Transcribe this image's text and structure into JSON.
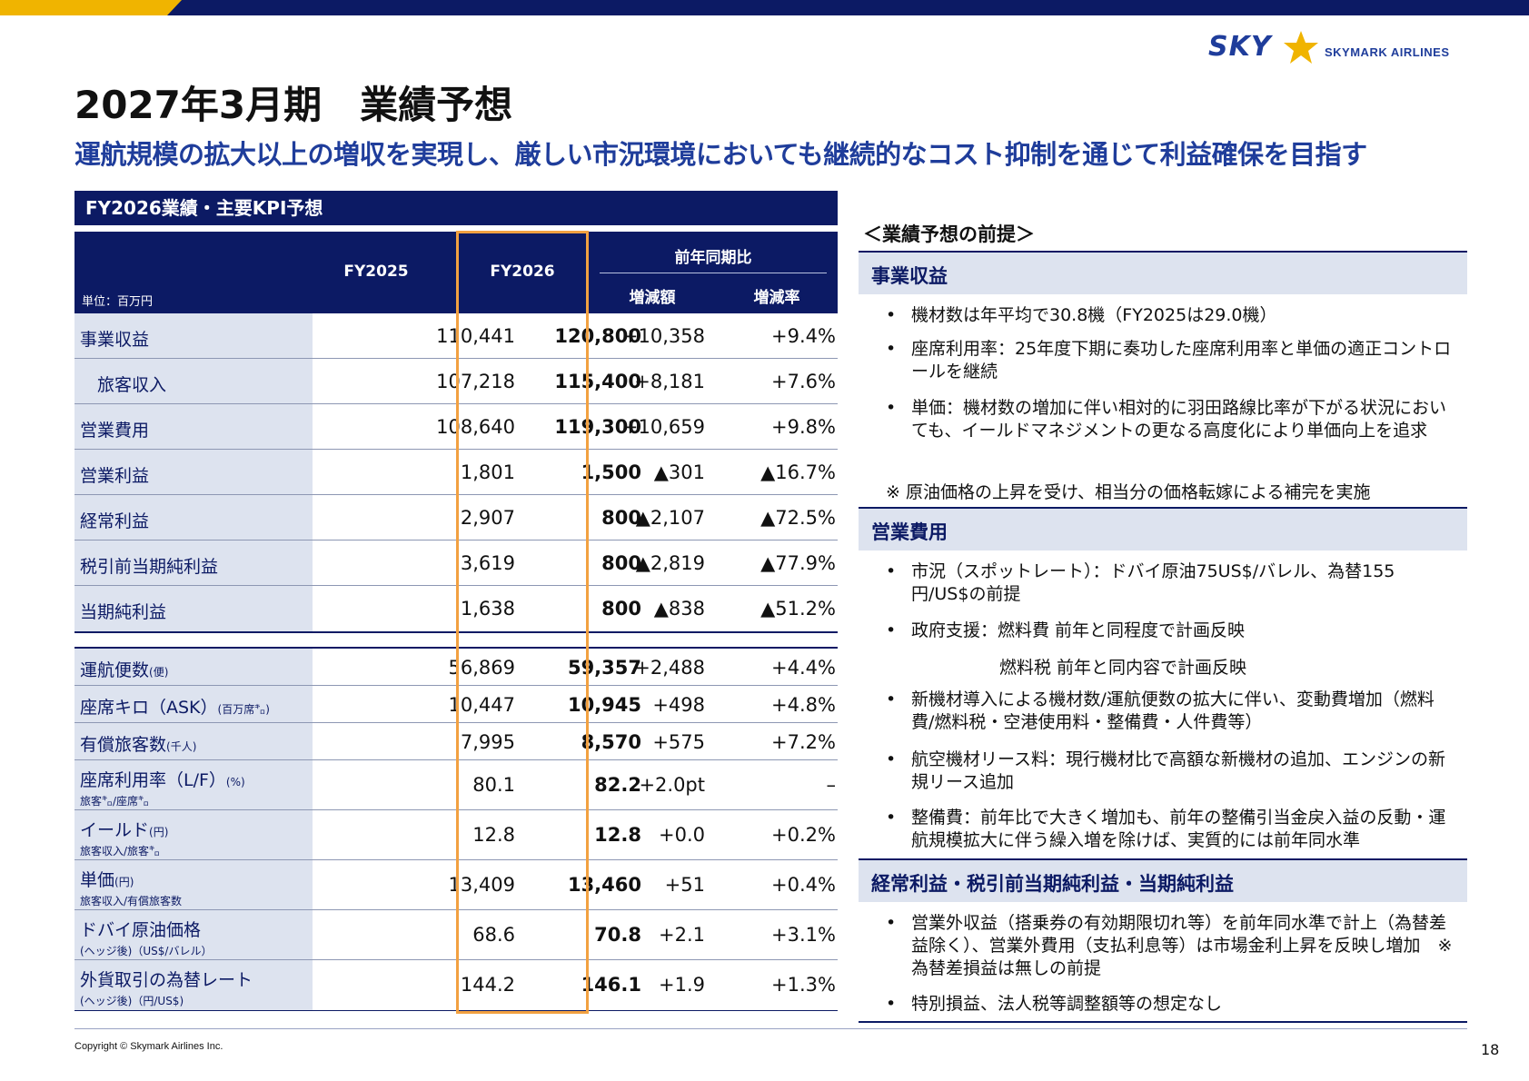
{
  "brand": {
    "sky": "SKY",
    "name": "SKYMARK AIRLINES",
    "colors": {
      "navy": "#0c1a64",
      "blue": "#1f3d9b",
      "gold": "#f0b400",
      "orange": "#f2a141"
    }
  },
  "title": "2027年3月期　業績予想",
  "subtitle": "運航規模の拡大以上の増収を実現し、厳しい市況環境においても継続的なコスト抑制を通じて利益確保を目指す",
  "table": {
    "title": "FY2026業績・主要KPI予想",
    "unit": "単位：百万円",
    "col_fy2025": "FY2025",
    "col_fy2026": "FY2026",
    "col_yoy": "前年同期比",
    "col_diff": "増減額",
    "col_rate": "増減率",
    "rows": [
      {
        "label": "事業収益",
        "fy2025": "110,441",
        "fy2026": "120,800",
        "diff": "+10,358",
        "rate": "+9.4%"
      },
      {
        "label": "　旅客収入",
        "fy2025": "107,218",
        "fy2026": "115,400",
        "diff": "+8,181",
        "rate": "+7.6%"
      },
      {
        "label": "営業費用",
        "fy2025": "108,640",
        "fy2026": "119,300",
        "diff": "+10,659",
        "rate": "+9.8%"
      },
      {
        "label": "営業利益",
        "fy2025": "1,801",
        "fy2026": "1,500",
        "diff": "▲301",
        "rate": "▲16.7%"
      },
      {
        "label": "経常利益",
        "fy2025": "2,907",
        "fy2026": "800",
        "diff": "▲2,107",
        "rate": "▲72.5%"
      },
      {
        "label": "税引前当期純利益",
        "fy2025": "3,619",
        "fy2026": "800",
        "diff": "▲2,819",
        "rate": "▲77.9%"
      },
      {
        "label": "当期純利益",
        "fy2025": "1,638",
        "fy2026": "800",
        "diff": "▲838",
        "rate": "▲51.2%"
      }
    ],
    "kpi_rows": [
      {
        "label": "運航便数",
        "unit": "(便)",
        "sub": "",
        "fy2025": "56,869",
        "fy2026": "59,357",
        "diff": "+2,488",
        "rate": "+4.4%"
      },
      {
        "label": "座席キロ（ASK）",
        "unit": "(百万席㌔)",
        "sub": "",
        "fy2025": "10,447",
        "fy2026": "10,945",
        "diff": "+498",
        "rate": "+4.8%"
      },
      {
        "label": "有償旅客数",
        "unit": "(千人)",
        "sub": "",
        "fy2025": "7,995",
        "fy2026": "8,570",
        "diff": "+575",
        "rate": "+7.2%"
      },
      {
        "label": "座席利用率（L/F）",
        "unit": "(%)",
        "sub": "旅客㌔/座席㌔",
        "fy2025": "80.1",
        "fy2026": "82.2",
        "diff": "+2.0pt",
        "rate": "–"
      },
      {
        "label": "イールド",
        "unit": "(円)",
        "sub": "旅客収入/旅客㌔",
        "fy2025": "12.8",
        "fy2026": "12.8",
        "diff": "+0.0",
        "rate": "+0.2%"
      },
      {
        "label": "単価",
        "unit": "(円)",
        "sub": "旅客収入/有償旅客数",
        "fy2025": "13,409",
        "fy2026": "13,460",
        "diff": "+51",
        "rate": "+0.4%"
      },
      {
        "label": "ドバイ原油価格",
        "unit": "",
        "sub": "(ヘッジ後)（US$/バレル）",
        "fy2025": "68.6",
        "fy2026": "70.8",
        "diff": "+2.1",
        "rate": "+3.1%"
      },
      {
        "label": "外貨取引の為替レート",
        "unit": "",
        "sub": "(ヘッジ後)（円/US$)",
        "fy2025": "144.2",
        "fy2026": "146.1",
        "diff": "+1.9",
        "rate": "+1.3%"
      }
    ]
  },
  "assumptions": {
    "heading": "＜業績予想の前提＞",
    "revenue": {
      "title": "事業収益",
      "bullets": [
        "機材数は年平均で30.8機（FY2025は29.0機）",
        "座席利用率：25年度下期に奏功した座席利用率と単価の適正コントロールを継続",
        "単価：機材数の増加に伴い相対的に羽田路線比率が下がる状況においても、イールドマネジメントの更なる高度化により単価向上を追求"
      ],
      "note": "※ 原油価格の上昇を受け、相当分の価格転嫁による補完を実施"
    },
    "expense": {
      "title": "営業費用",
      "bullets": [
        "市況（スポットレート）：ドバイ原油75US$/バレル、為替155円/US$の前提",
        "政府支援：燃料費 前年と同程度で計画反映",
        "新機材導入による機材数/運航便数の拡大に伴い、変動費増加（燃料費/燃料税・空港使用料・整備費・人件費等）",
        "航空機材リース料：現行機材比で高額な新機材の追加、エンジンの新規リース追加",
        "整備費：前年比で大きく増加も、前年の整備引当金戻入益の反動・運航規模拡大に伴う繰入増を除けば、実質的には前年同水準"
      ],
      "subline": "燃料税 前年と同内容で計画反映"
    },
    "profit": {
      "title": "経常利益・税引前当期純利益・当期純利益",
      "bullets": [
        "営業外収益（搭乗券の有効期限切れ等）を前年同水準で計上（為替差益除く）、営業外費用（支払利息等）は市場金利上昇を反映し増加　※為替差損益は無しの前提",
        "特別損益、法人税等調整額等の想定なし"
      ]
    }
  },
  "footer": {
    "copyright": "Copyright © Skymark Airlines Inc.",
    "page": "18"
  }
}
